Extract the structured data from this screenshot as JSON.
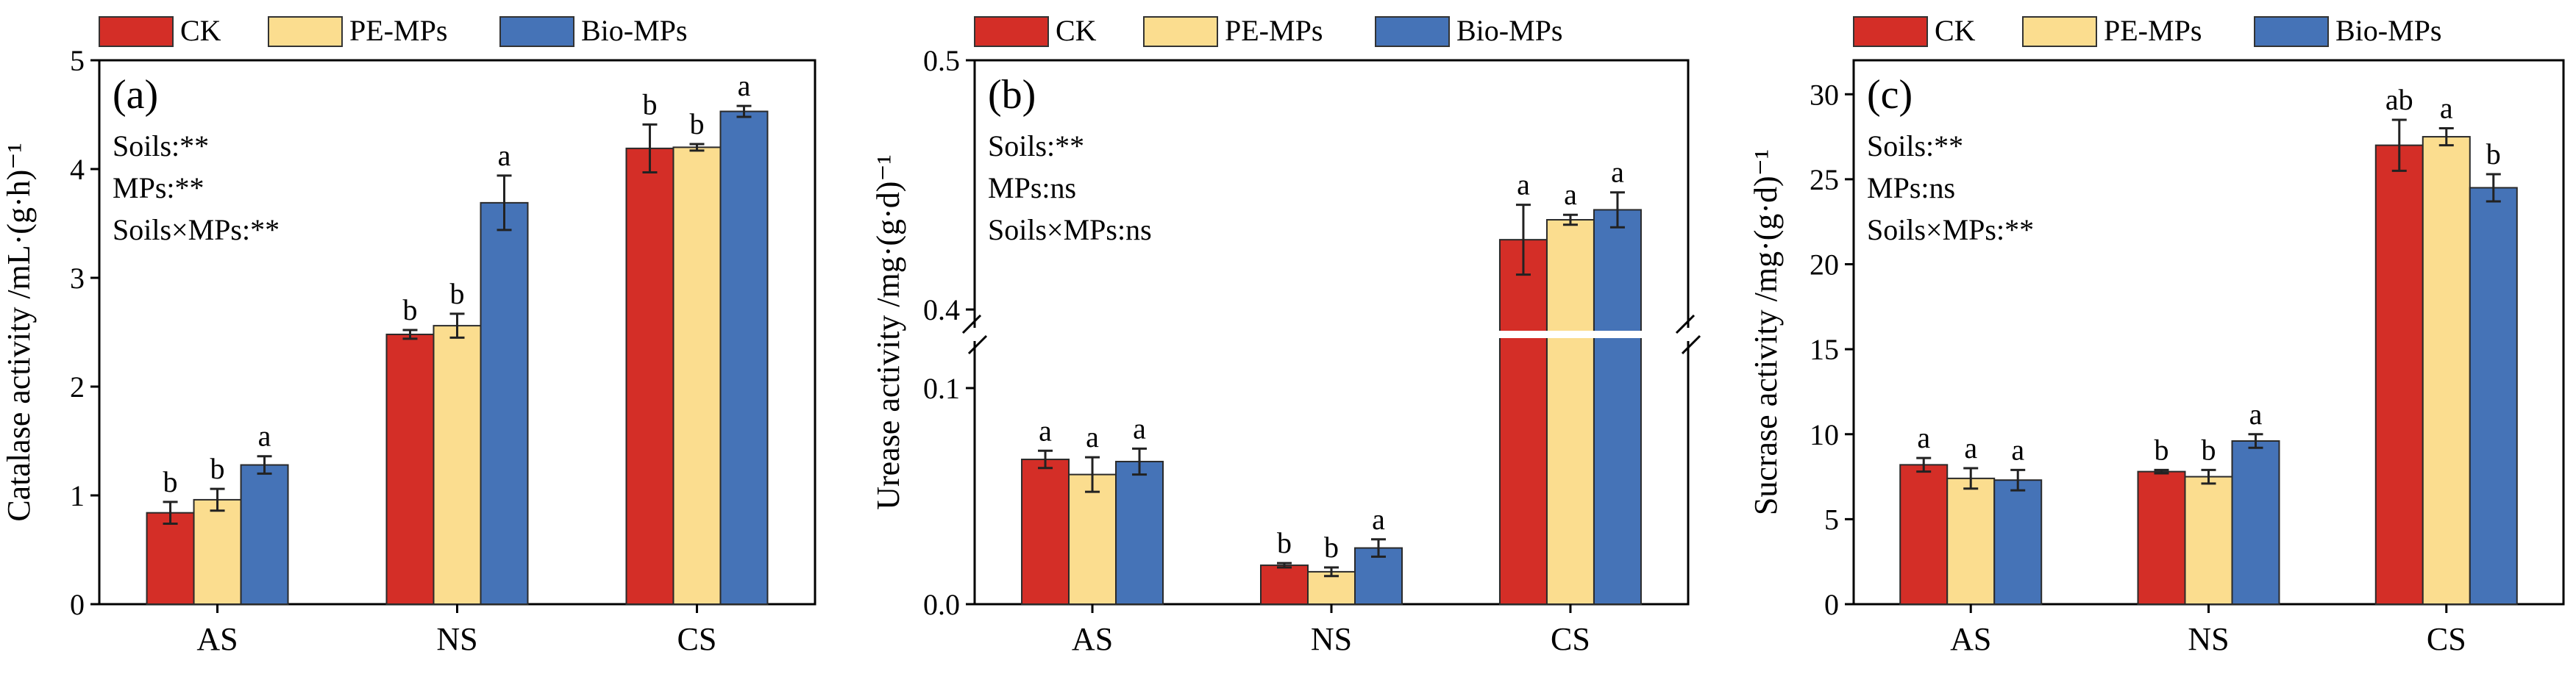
{
  "legend": {
    "items": [
      {
        "label": "CK",
        "color": "#d42e27"
      },
      {
        "label": "PE-MPs",
        "color": "#fbdd8f"
      },
      {
        "label": "Bio-MPs",
        "color": "#4573b7"
      }
    ]
  },
  "chart_data": [
    {
      "type": "bar",
      "panel_label": "(a)",
      "ylabel": "Catalase activity /mL·(g·h)⁻¹",
      "categories": [
        "AS",
        "NS",
        "CS"
      ],
      "ylim": [
        0,
        5
      ],
      "yticks": [
        0,
        1,
        2,
        3,
        4,
        5
      ],
      "stats": [
        "Soils:**",
        "MPs:**",
        "Soils×MPs:**"
      ],
      "series": [
        {
          "name": "CK",
          "values": [
            0.84,
            2.48,
            4.19
          ],
          "errors": [
            0.1,
            0.04,
            0.22
          ],
          "letters": [
            "b",
            "b",
            "b"
          ]
        },
        {
          "name": "PE-MPs",
          "values": [
            0.96,
            2.56,
            4.2
          ],
          "errors": [
            0.1,
            0.11,
            0.03
          ],
          "letters": [
            "b",
            "b",
            "b"
          ]
        },
        {
          "name": "Bio-MPs",
          "values": [
            1.28,
            3.69,
            4.53
          ],
          "errors": [
            0.08,
            0.25,
            0.05
          ],
          "letters": [
            "a",
            "a",
            "a"
          ]
        }
      ]
    },
    {
      "type": "bar",
      "panel_label": "(b)",
      "ylabel": "Urease activity /mg·(g·d)⁻¹",
      "categories": [
        "AS",
        "NS",
        "CS"
      ],
      "broken_axis": {
        "lower": [
          0,
          0.1
        ],
        "upper": [
          0.39,
          0.5
        ]
      },
      "yticks": [
        0.0,
        0.1,
        0.4,
        0.5
      ],
      "ytick_labels": [
        "0.0",
        "0.1",
        "0.4",
        "0.5"
      ],
      "stats": [
        "Soils:**",
        "MPs:ns",
        "Soils×MPs:ns"
      ],
      "series": [
        {
          "name": "CK",
          "values": [
            0.067,
            0.018,
            0.428
          ],
          "errors": [
            0.004,
            0.001,
            0.014
          ],
          "letters": [
            "a",
            "b",
            "a"
          ]
        },
        {
          "name": "PE-MPs",
          "values": [
            0.06,
            0.015,
            0.436
          ],
          "errors": [
            0.008,
            0.002,
            0.002
          ],
          "letters": [
            "a",
            "b",
            "a"
          ]
        },
        {
          "name": "Bio-MPs",
          "values": [
            0.066,
            0.026,
            0.44
          ],
          "errors": [
            0.006,
            0.004,
            0.007
          ],
          "letters": [
            "a",
            "a",
            "a"
          ]
        }
      ]
    },
    {
      "type": "bar",
      "panel_label": "(c)",
      "ylabel": "Sucrase activity /mg·(g·d)⁻¹",
      "categories": [
        "AS",
        "NS",
        "CS"
      ],
      "ylim": [
        0,
        32
      ],
      "yticks": [
        0,
        5,
        10,
        15,
        20,
        25,
        30
      ],
      "stats": [
        "Soils:**",
        "MPs:ns",
        "Soils×MPs:**"
      ],
      "series": [
        {
          "name": "CK",
          "values": [
            8.2,
            7.8,
            27.0
          ],
          "errors": [
            0.4,
            0.1,
            1.5
          ],
          "letters": [
            "a",
            "b",
            "ab"
          ]
        },
        {
          "name": "PE-MPs",
          "values": [
            7.4,
            7.5,
            27.5
          ],
          "errors": [
            0.6,
            0.4,
            0.5
          ],
          "letters": [
            "a",
            "b",
            "a"
          ]
        },
        {
          "name": "Bio-MPs",
          "values": [
            7.3,
            9.6,
            24.5
          ],
          "errors": [
            0.6,
            0.4,
            0.8
          ],
          "letters": [
            "a",
            "a",
            "b"
          ]
        }
      ]
    }
  ]
}
